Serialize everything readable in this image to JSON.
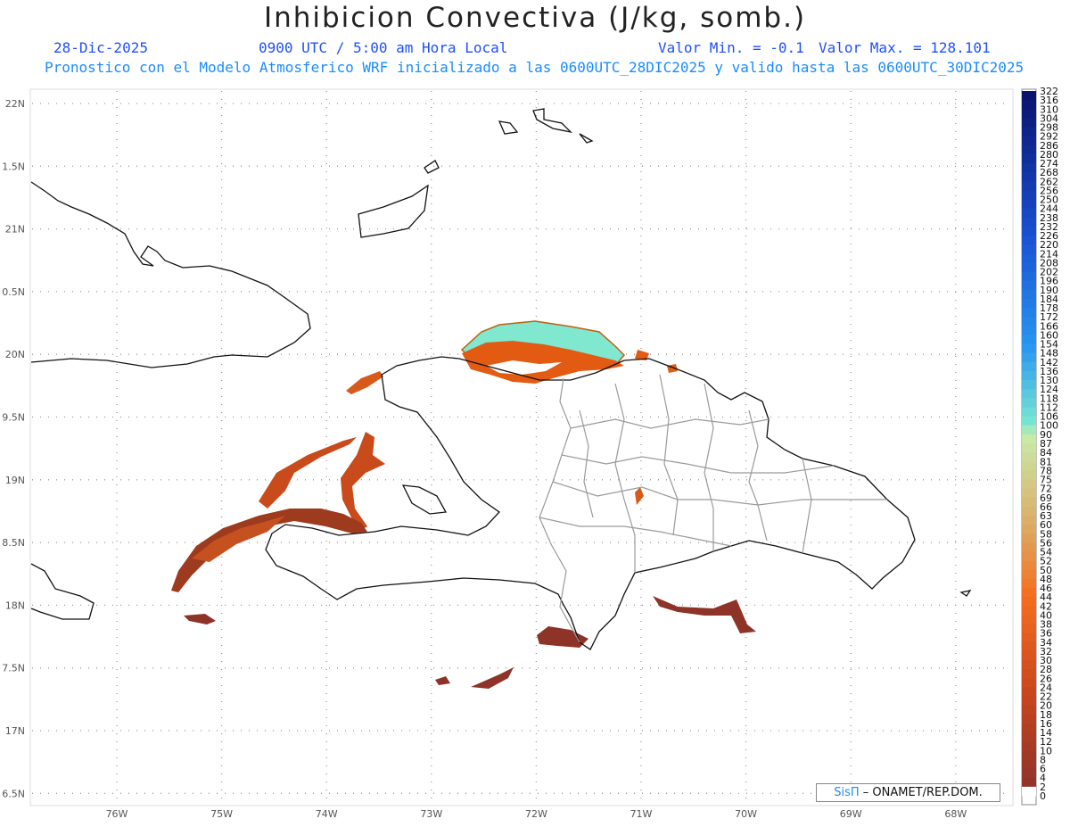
{
  "title": "Inhibicion Convectiva (J/kg, somb.)",
  "header": {
    "date": "28-Dic-2025",
    "time": "0900 UTC / 5:00 am Hora Local",
    "min": "Valor Min. = -0.1",
    "max": "Valor Max. = 128.101"
  },
  "subtitle": "Pronostico con el Modelo Atmosferico WRF inicializado a las 0600UTC_28DIC2025 y valido hasta las  0600UTC_30DIC2025",
  "lat_labels": [
    "22N",
    "1.5N",
    "21N",
    "0.5N",
    "20N",
    "9.5N",
    "19N",
    "8.5N",
    "18N",
    "7.5N",
    "17N",
    "6.5N"
  ],
  "lon_labels": [
    "76W",
    "75W",
    "74W",
    "73W",
    "72W",
    "71W",
    "70W",
    "69W",
    "68W"
  ],
  "colorbar": {
    "labels": [
      "322",
      "316",
      "310",
      "304",
      "298",
      "292",
      "286",
      "280",
      "274",
      "268",
      "262",
      "256",
      "250",
      "244",
      "238",
      "232",
      "226",
      "220",
      "214",
      "208",
      "202",
      "196",
      "190",
      "184",
      "178",
      "172",
      "166",
      "160",
      "154",
      "148",
      "142",
      "136",
      "130",
      "124",
      "118",
      "112",
      "106",
      "100",
      "90",
      "87",
      "84",
      "81",
      "78",
      "75",
      "72",
      "69",
      "66",
      "63",
      "60",
      "58",
      "56",
      "54",
      "52",
      "50",
      "48",
      "46",
      "44",
      "42",
      "40",
      "38",
      "36",
      "34",
      "32",
      "30",
      "28",
      "26",
      "24",
      "22",
      "20",
      "18",
      "16",
      "14",
      "12",
      "10",
      "8",
      "6",
      "4",
      "2",
      "0"
    ]
  },
  "credit": {
    "brand": "SisΠ",
    "text": " – ONAMET/REP.DOM."
  }
}
